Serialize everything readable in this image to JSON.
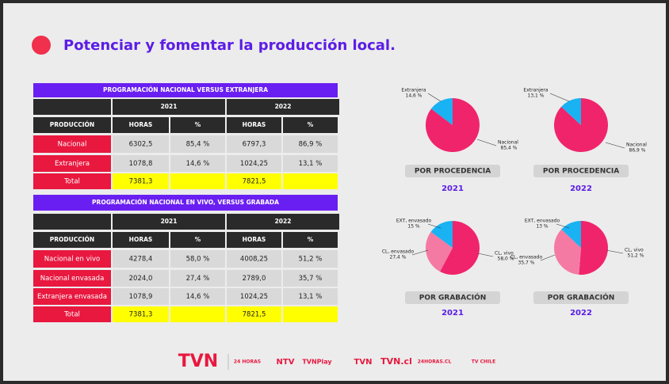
{
  "header": {
    "title": "Potenciar y fomentar la producción local."
  },
  "tables": [
    {
      "title": "PROGRAMACIÓN NACIONAL VERSUS EXTRANJERA",
      "years": [
        "2021",
        "2022"
      ],
      "header": [
        "PRODUCCIÓN",
        "HORAS",
        "%",
        "HORAS",
        "%"
      ],
      "rows": [
        [
          "Nacional",
          "6302,5",
          "85,4 %",
          "6797,3",
          "86,9 %"
        ],
        [
          "Extranjera",
          "1078,8",
          "14,6 %",
          "1024,25",
          "13,1 %"
        ]
      ],
      "total": {
        "label": "Total",
        "values": [
          "7381,3",
          "7821,5"
        ]
      }
    },
    {
      "title": "PROGRAMACIÓN NACIONAL EN VIVO, VERSUS GRABADA",
      "years": [
        "2021",
        "2022"
      ],
      "header": [
        "PRODUCCIÓN",
        "HORAS",
        "%",
        "HORAS",
        "%"
      ],
      "rows": [
        [
          "Nacional en vivo",
          "4278,4",
          "58,0 %",
          "4008,25",
          "51,2 %"
        ],
        [
          "Nacional envasada",
          "2024,0",
          "27,4 %",
          "2789,0",
          "35,7 %"
        ],
        [
          "Extranjera envasada",
          "1078,9",
          "14,6 %",
          "1024,25",
          "13,1 %"
        ]
      ],
      "total": {
        "label": "Total",
        "values": [
          "7381,3",
          "7821,5"
        ]
      }
    }
  ],
  "pies": [
    {
      "caption": "POR PROCEDENCIA",
      "year": "2021",
      "labels": [
        "Nacional",
        "Extranjera"
      ],
      "values": [
        85.4,
        14.6
      ],
      "value_labels": [
        "85,4 %",
        "14,6 %"
      ],
      "colors": [
        "#f0246b",
        "#19b2f2"
      ]
    },
    {
      "caption": "POR PROCEDENCIA",
      "year": "2022",
      "labels": [
        "Nacional",
        "Extranjera"
      ],
      "values": [
        86.9,
        13.1
      ],
      "value_labels": [
        "86,9 %",
        "13,1 %"
      ],
      "colors": [
        "#f0246b",
        "#19b2f2"
      ]
    },
    {
      "caption": "POR GRABACIÓN",
      "year": "2021",
      "labels": [
        "CL, vivo",
        "CL, envasado",
        "EXT, envasado"
      ],
      "values": [
        58.0,
        27.4,
        15
      ],
      "value_labels": [
        "58,0 %",
        "27,4 %",
        "15 %"
      ],
      "colors": [
        "#f0246b",
        "#f47aa4",
        "#19b2f2"
      ]
    },
    {
      "caption": "POR GRABACIÓN",
      "year": "2022",
      "labels": [
        "CL, vivo",
        "CL, envasado",
        "EXT, envasado"
      ],
      "values": [
        51.2,
        35.7,
        13
      ],
      "value_labels": [
        "51,2 %",
        "35,7 %",
        "13 %"
      ],
      "colors": [
        "#f0246b",
        "#f47aa4",
        "#19b2f2"
      ]
    }
  ],
  "footer": [
    "TVN",
    "24 HORAS",
    "NTV",
    "TVNPlay",
    "TVN",
    "TVN.cl",
    "24HORAS.CL",
    "TV CHILE"
  ]
}
